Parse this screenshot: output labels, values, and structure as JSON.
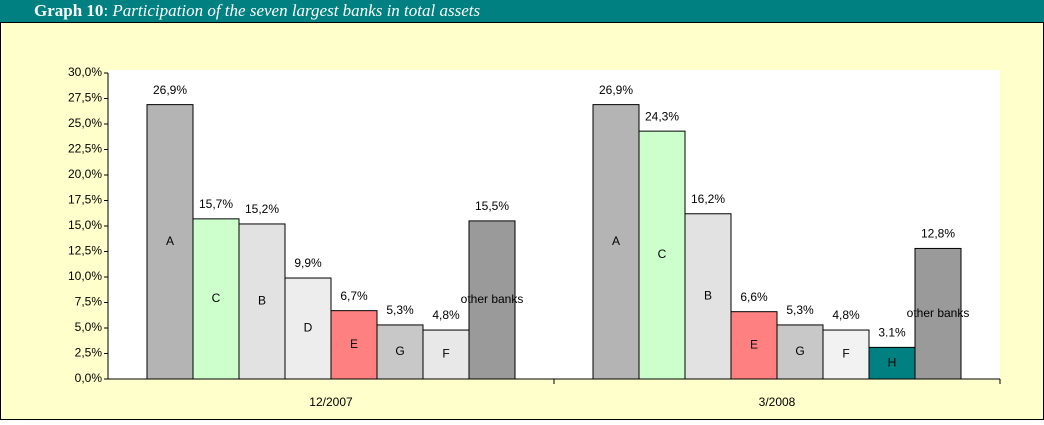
{
  "chart_data": {
    "type": "grouped-bar",
    "title_number": "Graph 10",
    "title_separator": ": ",
    "title": "Participation of the seven largest banks in total assets",
    "ylim": [
      0,
      30
    ],
    "yticks": [
      {
        "value": 0,
        "label": "0,0%"
      },
      {
        "value": 2.5,
        "label": "2,5%"
      },
      {
        "value": 5,
        "label": "5,0%"
      },
      {
        "value": 7.5,
        "label": "7,5%"
      },
      {
        "value": 10,
        "label": "10,0%"
      },
      {
        "value": 12.5,
        "label": "12,5%"
      },
      {
        "value": 15,
        "label": "15,0%"
      },
      {
        "value": 17.5,
        "label": "17,5%"
      },
      {
        "value": 20,
        "label": "20,0%"
      },
      {
        "value": 22.5,
        "label": "22,5%"
      },
      {
        "value": 25,
        "label": "25,0%"
      },
      {
        "value": 27.5,
        "label": "27,5%"
      },
      {
        "value": 30,
        "label": "30,0%"
      }
    ],
    "groups": [
      {
        "category": "12/2007",
        "bars": [
          {
            "name": "A",
            "value": 26.9,
            "value_label": "26,9%",
            "color": "#b4b4b4"
          },
          {
            "name": "C",
            "value": 15.7,
            "value_label": "15,7%",
            "color": "#ccffcc"
          },
          {
            "name": "B",
            "value": 15.2,
            "value_label": "15,2%",
            "color": "#e2e2e2"
          },
          {
            "name": "D",
            "value": 9.9,
            "value_label": "9,9%",
            "color": "#ededed"
          },
          {
            "name": "E",
            "value": 6.7,
            "value_label": "6,7%",
            "color": "#ff8080"
          },
          {
            "name": "G",
            "value": 5.3,
            "value_label": "5,3%",
            "color": "#c8c8c8"
          },
          {
            "name": "F",
            "value": 4.8,
            "value_label": "4,8%",
            "color": "#e8e8e8"
          },
          {
            "name": "other banks",
            "value": 15.5,
            "value_label": "15,5%",
            "color": "#9a9a9a"
          }
        ]
      },
      {
        "category": "3/2008",
        "bars": [
          {
            "name": "A",
            "value": 26.9,
            "value_label": "26,9%",
            "color": "#b4b4b4"
          },
          {
            "name": "C",
            "value": 24.3,
            "value_label": "24,3%",
            "color": "#ccffcc"
          },
          {
            "name": "B",
            "value": 16.2,
            "value_label": "16,2%",
            "color": "#e2e2e2"
          },
          {
            "name": "E",
            "value": 6.6,
            "value_label": "6,6%",
            "color": "#ff8080"
          },
          {
            "name": "G",
            "value": 5.3,
            "value_label": "5,3%",
            "color": "#c8c8c8"
          },
          {
            "name": "F",
            "value": 4.8,
            "value_label": "4,8%",
            "color": "#f2f2f2"
          },
          {
            "name": "H",
            "value": 3.1,
            "value_label": "3.1%",
            "color": "#008080"
          },
          {
            "name": "other banks",
            "value": 12.8,
            "value_label": "12,8%",
            "color": "#9a9a9a"
          }
        ]
      }
    ]
  }
}
